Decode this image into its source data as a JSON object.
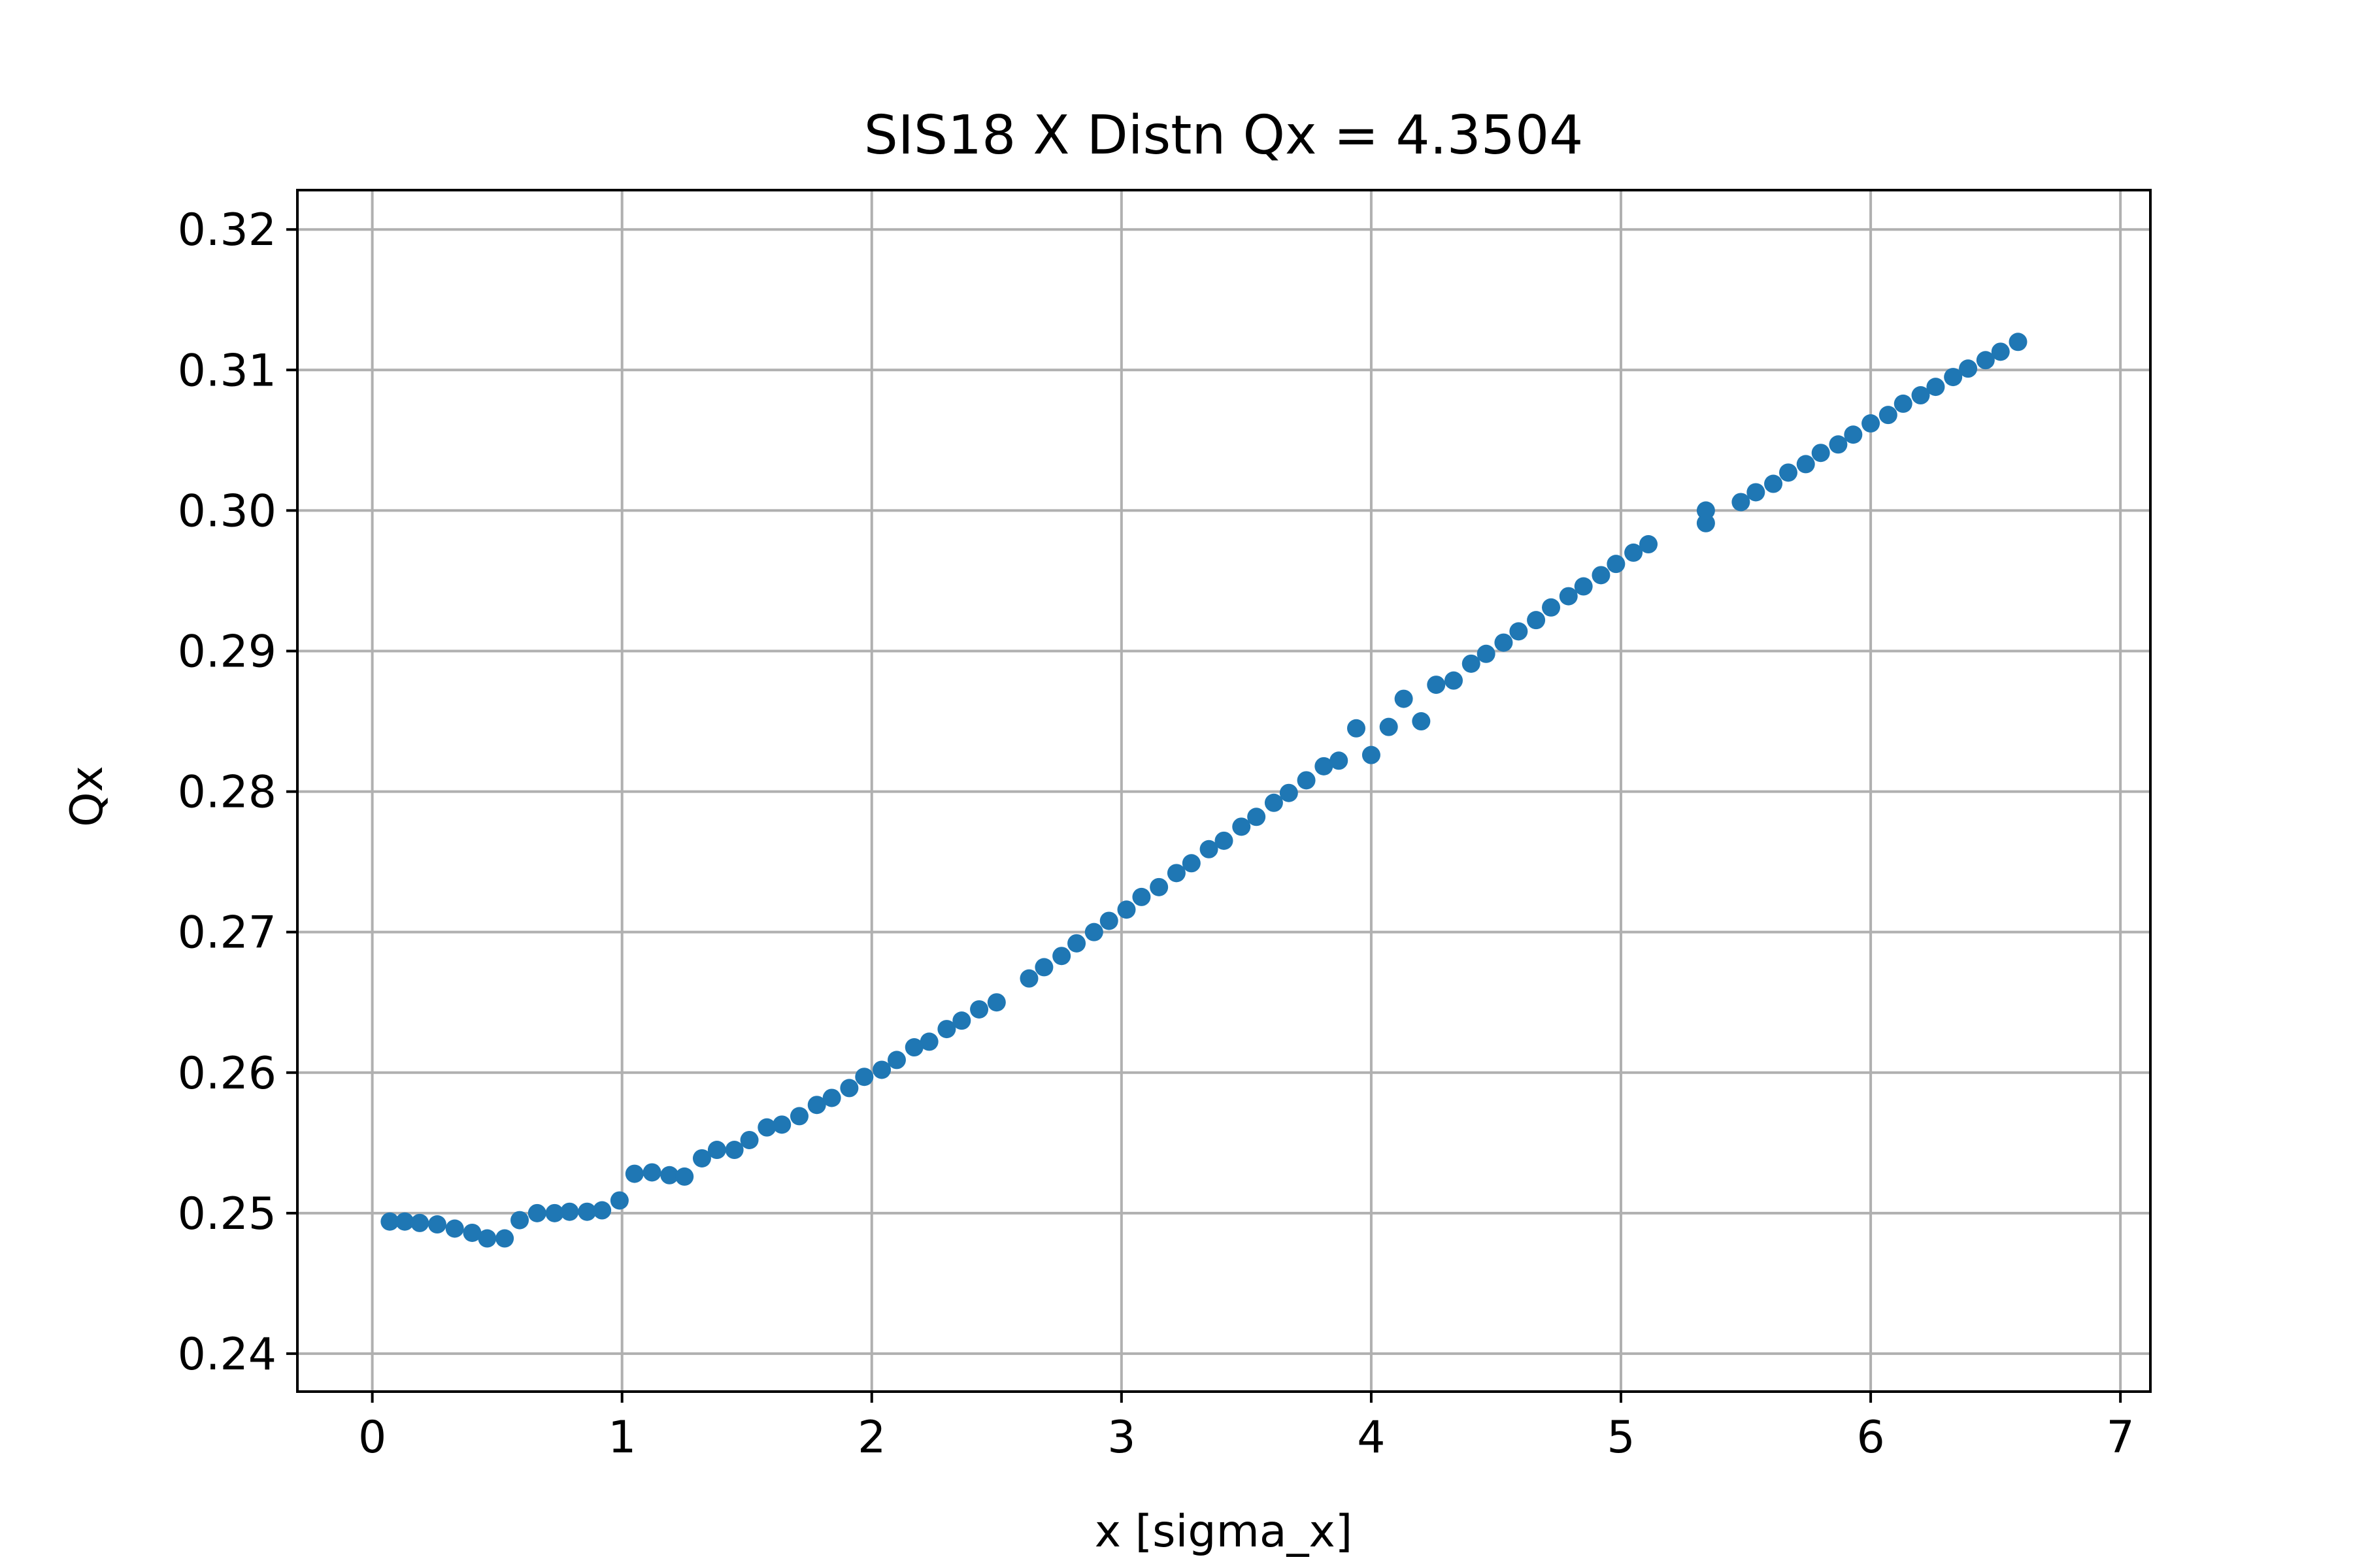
{
  "chart_data": {
    "type": "scatter",
    "title": "SIS18 X Distn Qx = 4.3504",
    "xlabel": "x [sigma_x]",
    "ylabel": "Qx",
    "xlim": [
      -0.3,
      7.12
    ],
    "ylim": [
      0.2373,
      0.3228
    ],
    "xticks": [
      0,
      1,
      2,
      3,
      4,
      5,
      6,
      7
    ],
    "yticks": [
      0.24,
      0.25,
      0.26,
      0.27,
      0.28,
      0.29,
      0.3,
      0.31,
      0.32
    ],
    "xtick_labels": [
      "0",
      "1",
      "2",
      "3",
      "4",
      "5",
      "6",
      "7"
    ],
    "ytick_labels": [
      "0.24",
      "0.25",
      "0.26",
      "0.27",
      "0.28",
      "0.29",
      "0.30",
      "0.31",
      "0.32"
    ],
    "grid": true,
    "legend": "none",
    "marker_color": "#1f77b4",
    "series": [
      {
        "points": [
          [
            0.07,
            0.2494
          ],
          [
            0.13,
            0.2494
          ],
          [
            0.19,
            0.2493
          ],
          [
            0.26,
            0.2492
          ],
          [
            0.33,
            0.2489
          ],
          [
            0.4,
            0.2486
          ],
          [
            0.46,
            0.2482
          ],
          [
            0.53,
            0.2482
          ],
          [
            0.59,
            0.2495
          ],
          [
            0.66,
            0.25
          ],
          [
            0.73,
            0.25
          ],
          [
            0.79,
            0.2501
          ],
          [
            0.86,
            0.2501
          ],
          [
            0.92,
            0.2502
          ],
          [
            0.99,
            0.2509
          ],
          [
            1.05,
            0.2528
          ],
          [
            1.12,
            0.2529
          ],
          [
            1.19,
            0.2527
          ],
          [
            1.25,
            0.2526
          ],
          [
            1.32,
            0.2539
          ],
          [
            1.38,
            0.2545
          ],
          [
            1.45,
            0.2545
          ],
          [
            1.51,
            0.2552
          ],
          [
            1.58,
            0.2561
          ],
          [
            1.64,
            0.2563
          ],
          [
            1.71,
            0.2569
          ],
          [
            1.78,
            0.2577
          ],
          [
            1.84,
            0.2582
          ],
          [
            1.91,
            0.2589
          ],
          [
            1.97,
            0.2597
          ],
          [
            2.04,
            0.2602
          ],
          [
            2.1,
            0.2609
          ],
          [
            2.17,
            0.2618
          ],
          [
            2.23,
            0.2622
          ],
          [
            2.3,
            0.2631
          ],
          [
            2.36,
            0.2637
          ],
          [
            2.43,
            0.2645
          ],
          [
            2.5,
            0.265
          ],
          [
            2.63,
            0.2667
          ],
          [
            2.69,
            0.2675
          ],
          [
            2.76,
            0.2683
          ],
          [
            2.82,
            0.2692
          ],
          [
            2.89,
            0.27
          ],
          [
            2.95,
            0.2708
          ],
          [
            3.02,
            0.2716
          ],
          [
            3.08,
            0.2725
          ],
          [
            3.15,
            0.2732
          ],
          [
            3.22,
            0.2742
          ],
          [
            3.28,
            0.2749
          ],
          [
            3.35,
            0.2759
          ],
          [
            3.41,
            0.2765
          ],
          [
            3.48,
            0.2775
          ],
          [
            3.54,
            0.2782
          ],
          [
            3.61,
            0.2792
          ],
          [
            3.67,
            0.2799
          ],
          [
            3.74,
            0.2808
          ],
          [
            3.81,
            0.2818
          ],
          [
            3.87,
            0.2822
          ],
          [
            3.94,
            0.2845
          ],
          [
            4.0,
            0.2826
          ],
          [
            4.07,
            0.2846
          ],
          [
            4.13,
            0.2866
          ],
          [
            4.2,
            0.285
          ],
          [
            4.26,
            0.2876
          ],
          [
            4.33,
            0.2879
          ],
          [
            4.4,
            0.2891
          ],
          [
            4.46,
            0.2898
          ],
          [
            4.53,
            0.2906
          ],
          [
            4.59,
            0.2914
          ],
          [
            4.66,
            0.2922
          ],
          [
            4.72,
            0.2931
          ],
          [
            4.79,
            0.2939
          ],
          [
            4.85,
            0.2946
          ],
          [
            4.92,
            0.2954
          ],
          [
            4.98,
            0.2962
          ],
          [
            5.05,
            0.297
          ],
          [
            5.11,
            0.2976
          ],
          [
            5.34,
            0.2991
          ],
          [
            5.34,
            0.3
          ],
          [
            5.48,
            0.3006
          ],
          [
            5.54,
            0.3013
          ],
          [
            5.61,
            0.3019
          ],
          [
            5.67,
            0.3027
          ],
          [
            5.74,
            0.3033
          ],
          [
            5.8,
            0.3041
          ],
          [
            5.87,
            0.3047
          ],
          [
            5.93,
            0.3054
          ],
          [
            6.0,
            0.3062
          ],
          [
            6.07,
            0.3068
          ],
          [
            6.13,
            0.3076
          ],
          [
            6.2,
            0.3082
          ],
          [
            6.26,
            0.3088
          ],
          [
            6.33,
            0.3095
          ],
          [
            6.39,
            0.3101
          ],
          [
            6.46,
            0.3107
          ],
          [
            6.52,
            0.3113
          ],
          [
            6.59,
            0.312
          ]
        ]
      }
    ]
  }
}
